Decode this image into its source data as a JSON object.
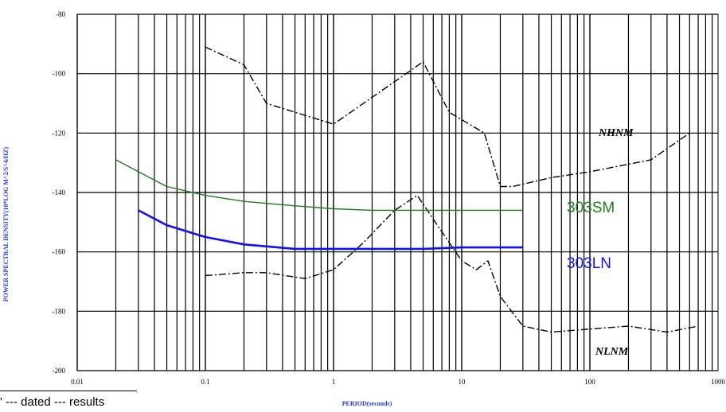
{
  "chart_data": {
    "type": "line",
    "title": "",
    "xlabel": "PERIOD(seconds)",
    "ylabel": "POWER SPECTRAL DENSITY(10*LOG M^2/S^4/HZ)",
    "x_scale": "log",
    "xlim": [
      0.01,
      1000
    ],
    "ylim": [
      -200,
      -80
    ],
    "x_ticks": [
      "0.01",
      "0.1",
      "1",
      "10",
      "100",
      "1000"
    ],
    "y_ticks": [
      "-80",
      "-100",
      "-120",
      "-140",
      "-160",
      "-180",
      "-200"
    ],
    "grid": true,
    "series": [
      {
        "name": "NHNM",
        "color": "#000000",
        "style": "dash-dot",
        "x": [
          0.1,
          0.2,
          0.3,
          1,
          5,
          8,
          15,
          20,
          25,
          50,
          100,
          300,
          600
        ],
        "y": [
          -91,
          -97,
          -110,
          -117,
          -96,
          -113,
          -120,
          -138,
          -138,
          -135,
          -133,
          -129,
          -120
        ]
      },
      {
        "name": "NLNM",
        "color": "#000000",
        "style": "dash-dot",
        "x": [
          0.1,
          0.2,
          0.3,
          0.6,
          1,
          1.7,
          3,
          4.5,
          6,
          10,
          13,
          16,
          20,
          30,
          50,
          100,
          200,
          400,
          700
        ],
        "y": [
          -168,
          -167,
          -167,
          -169,
          -166,
          -157,
          -146,
          -141,
          -149,
          -163,
          -166,
          -163,
          -175,
          -185,
          -187,
          -186,
          -185,
          -187,
          -185
        ]
      },
      {
        "name": "303SM",
        "color": "#1e7d1e",
        "style": "solid",
        "x": [
          0.02,
          0.03,
          0.05,
          0.1,
          0.2,
          0.5,
          1,
          2,
          5,
          10,
          30
        ],
        "y": [
          -129,
          -133,
          -138,
          -141,
          -143,
          -144.5,
          -145.5,
          -146,
          -146,
          -146,
          -146
        ]
      },
      {
        "name": "303LN",
        "color": "#1010f0",
        "style": "solid",
        "x": [
          0.03,
          0.05,
          0.1,
          0.2,
          0.5,
          1,
          2,
          5,
          10,
          30
        ],
        "y": [
          -146,
          -151,
          -155,
          -157.5,
          -159,
          -159,
          -159,
          -159,
          -158.5,
          -158.5
        ]
      }
    ]
  },
  "footer": {
    "note": "' --- dated --- results"
  }
}
